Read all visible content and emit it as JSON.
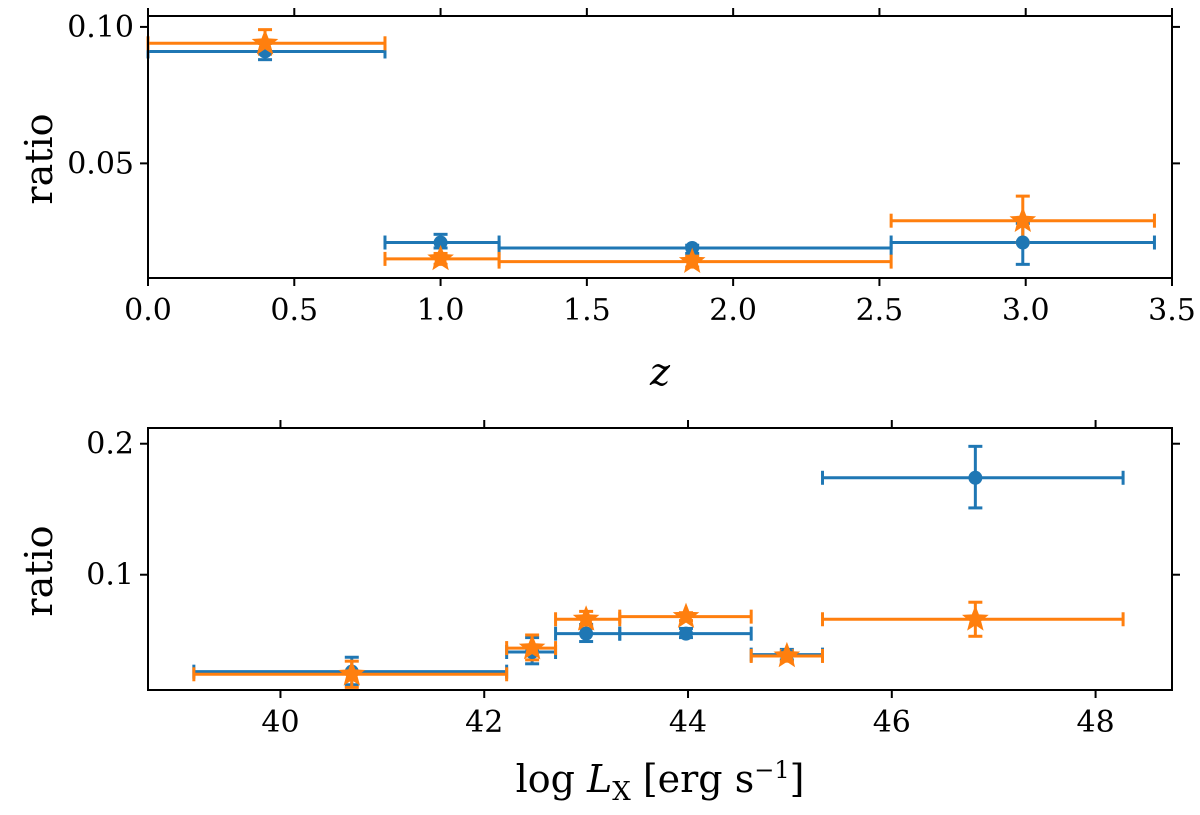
{
  "colors": {
    "blue": "#1f77b4",
    "orange": "#ff7f0e",
    "axis": "#000000"
  },
  "chart_data": [
    {
      "type": "scatter",
      "title": "",
      "xlabel": "z",
      "ylabel": "ratio",
      "xlim": [
        0.0,
        3.5
      ],
      "ylim": [
        0.008,
        0.104
      ],
      "xticks": [
        0.0,
        0.5,
        1.0,
        1.5,
        2.0,
        2.5,
        3.0,
        3.5
      ],
      "xtick_labels": [
        "0.0",
        "0.5",
        "1.0",
        "1.5",
        "2.0",
        "2.5",
        "3.0",
        "3.5"
      ],
      "yticks": [
        0.05,
        0.1
      ],
      "ytick_labels": [
        "0.05",
        "0.10"
      ],
      "series": [
        {
          "name": "blue",
          "color": "blue",
          "marker": "circle",
          "points": [
            {
              "x": 0.4,
              "y": 0.091,
              "xlo": 0.0,
              "xhi": 0.81,
              "ylo": 0.088,
              "yhi": 0.094
            },
            {
              "x": 1.0,
              "y": 0.021,
              "xlo": 0.81,
              "xhi": 1.2,
              "ylo": 0.019,
              "yhi": 0.024
            },
            {
              "x": 1.86,
              "y": 0.019,
              "xlo": 1.2,
              "xhi": 2.54,
              "ylo": 0.017,
              "yhi": 0.02
            },
            {
              "x": 2.99,
              "y": 0.021,
              "xlo": 2.54,
              "xhi": 3.44,
              "ylo": 0.013,
              "yhi": 0.028
            }
          ]
        },
        {
          "name": "orange",
          "color": "orange",
          "marker": "star",
          "points": [
            {
              "x": 0.4,
              "y": 0.094,
              "xlo": 0.0,
              "xhi": 0.81,
              "ylo": 0.09,
              "yhi": 0.099
            },
            {
              "x": 1.0,
              "y": 0.015,
              "xlo": 0.81,
              "xhi": 1.2,
              "ylo": 0.013,
              "yhi": 0.017
            },
            {
              "x": 1.86,
              "y": 0.014,
              "xlo": 1.2,
              "xhi": 2.54,
              "ylo": 0.012,
              "yhi": 0.016
            },
            {
              "x": 2.99,
              "y": 0.029,
              "xlo": 2.54,
              "xhi": 3.44,
              "ylo": 0.021,
              "yhi": 0.038
            }
          ]
        }
      ]
    },
    {
      "type": "scatter",
      "title": "",
      "xlabel": "log L_X [erg s^-1]",
      "ylabel": "ratio",
      "xlim": [
        38.7,
        48.75
      ],
      "ylim": [
        0.012,
        0.212
      ],
      "xticks": [
        40,
        42,
        44,
        46,
        48
      ],
      "xtick_labels": [
        "40",
        "42",
        "44",
        "46",
        "48"
      ],
      "yticks": [
        0.1,
        0.2
      ],
      "ytick_labels": [
        "0.1",
        "0.2"
      ],
      "series": [
        {
          "name": "blue",
          "color": "blue",
          "marker": "circle",
          "points": [
            {
              "x": 40.7,
              "y": 0.026,
              "xlo": 39.15,
              "xhi": 42.22,
              "ylo": 0.016,
              "yhi": 0.037
            },
            {
              "x": 42.47,
              "y": 0.041,
              "xlo": 42.22,
              "xhi": 42.7,
              "ylo": 0.032,
              "yhi": 0.052
            },
            {
              "x": 43.0,
              "y": 0.055,
              "xlo": 42.7,
              "xhi": 43.33,
              "ylo": 0.049,
              "yhi": 0.062
            },
            {
              "x": 43.98,
              "y": 0.055,
              "xlo": 43.33,
              "xhi": 44.62,
              "ylo": 0.052,
              "yhi": 0.059
            },
            {
              "x": 44.97,
              "y": 0.039,
              "xlo": 44.62,
              "xhi": 45.32,
              "ylo": 0.035,
              "yhi": 0.043
            },
            {
              "x": 46.82,
              "y": 0.174,
              "xlo": 45.32,
              "xhi": 48.27,
              "ylo": 0.151,
              "yhi": 0.198
            }
          ]
        },
        {
          "name": "orange",
          "color": "orange",
          "marker": "star",
          "points": [
            {
              "x": 40.7,
              "y": 0.024,
              "xlo": 39.15,
              "xhi": 42.22,
              "ylo": 0.014,
              "yhi": 0.034
            },
            {
              "x": 42.47,
              "y": 0.044,
              "xlo": 42.22,
              "xhi": 42.7,
              "ylo": 0.035,
              "yhi": 0.054
            },
            {
              "x": 43.0,
              "y": 0.066,
              "xlo": 42.7,
              "xhi": 43.33,
              "ylo": 0.059,
              "yhi": 0.072
            },
            {
              "x": 43.98,
              "y": 0.068,
              "xlo": 43.33,
              "xhi": 44.62,
              "ylo": 0.065,
              "yhi": 0.071
            },
            {
              "x": 44.97,
              "y": 0.038,
              "xlo": 44.62,
              "xhi": 45.32,
              "ylo": 0.034,
              "yhi": 0.042
            },
            {
              "x": 46.82,
              "y": 0.066,
              "xlo": 45.32,
              "xhi": 48.27,
              "ylo": 0.053,
              "yhi": 0.079
            }
          ]
        }
      ]
    }
  ]
}
